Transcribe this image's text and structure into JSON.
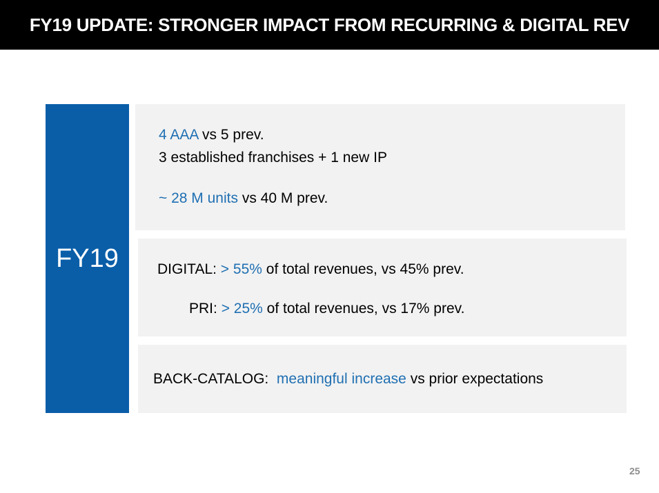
{
  "title": "FY19 UPDATE: STRONGER IMPACT FROM RECURRING & DIGITAL REV",
  "fy_label": "FY19",
  "panel1": {
    "line1_hl": "4 AAA",
    "line1_rest": " vs 5 prev.",
    "line2": "3 established franchises + 1 new IP",
    "line3_hl": "~ 28 M units",
    "line3_rest": " vs 40 M prev."
  },
  "panel2": {
    "line1_pre": "DIGITAL: ",
    "line1_hl": "> 55%",
    "line1_rest": " of total revenues, vs 45% prev.",
    "line2_pre": "PRI: ",
    "line2_hl": "> 25%",
    "line2_rest": " of total revenues, vs 17% prev."
  },
  "panel3": {
    "pre": "BACK-CATALOG:  ",
    "hl": "meaningful increase",
    "rest": " vs prior expectations"
  },
  "page_number": "25",
  "colors": {
    "accent": "#0a5ea8",
    "highlight": "#1f6fb2",
    "panel": "#f2f2f2"
  }
}
